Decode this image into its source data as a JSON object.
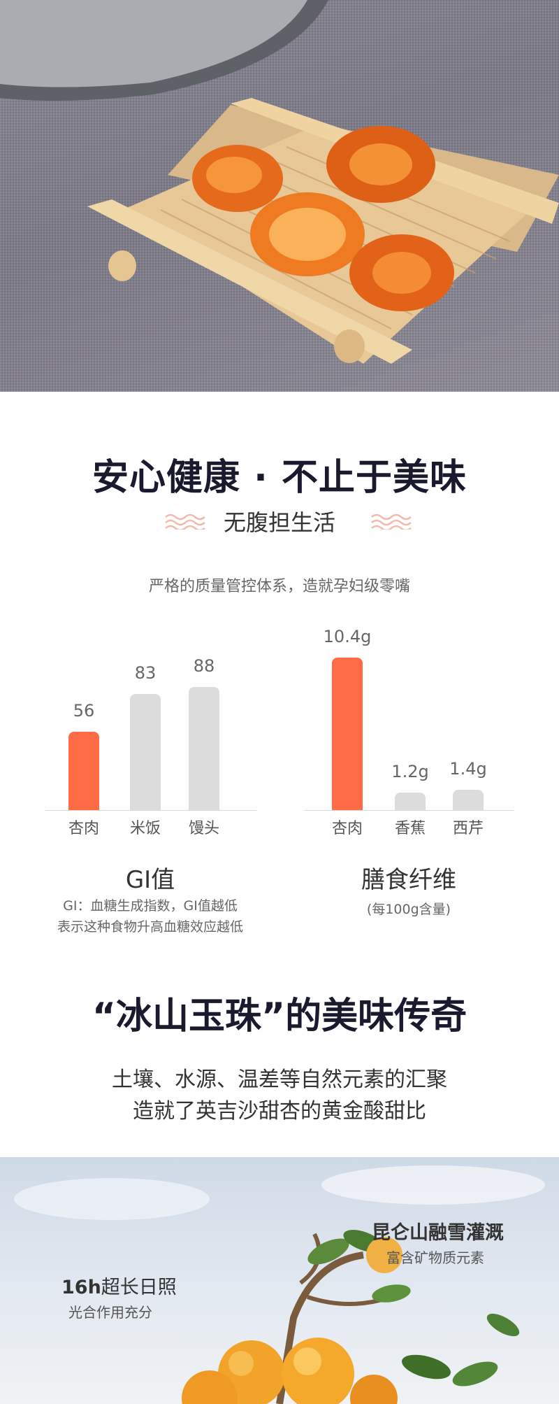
{
  "headline": "安心健康 · 不止于美味",
  "subhead": "无腹担生活",
  "quality_note": "严格的质量管控体系，造就孕妇级零嘴",
  "chart_data": [
    {
      "type": "bar",
      "title": "GI值",
      "categories": [
        "杏肉",
        "米饭",
        "馒头"
      ],
      "values": [
        56,
        83,
        88
      ],
      "value_labels": [
        "56",
        "83",
        "88"
      ],
      "highlight_index": 0,
      "note_lines": [
        "GI：血糖生成指数，GI值越低",
        "表示这种食物升高血糖效应越低"
      ]
    },
    {
      "type": "bar",
      "title": "膳食纤维",
      "unit_note": "(每100g含量)",
      "categories": [
        "杏肉",
        "香蕉",
        "西芹"
      ],
      "values": [
        10.4,
        1.2,
        1.4
      ],
      "value_labels": [
        "10.4g",
        "1.2g",
        "1.4g"
      ],
      "highlight_index": 0
    }
  ],
  "colors": {
    "highlight": "#ff6b45",
    "muted": "#dcdcdc",
    "wave": "#f4b9a8"
  },
  "legend_title": "“冰山玉珠”的美味传奇",
  "lead_lines": [
    "土壤、水源、温差等自然元素的汇聚",
    "造就了英吉沙甜杏的黄金酸甜比"
  ],
  "callouts": {
    "snow": {
      "title": "昆仑山融雪灌溉",
      "sub": "富含矿物质元素"
    },
    "sun": {
      "title_bold": "16h",
      "title_rest": "超长日照",
      "sub": "光合作用充分"
    }
  }
}
